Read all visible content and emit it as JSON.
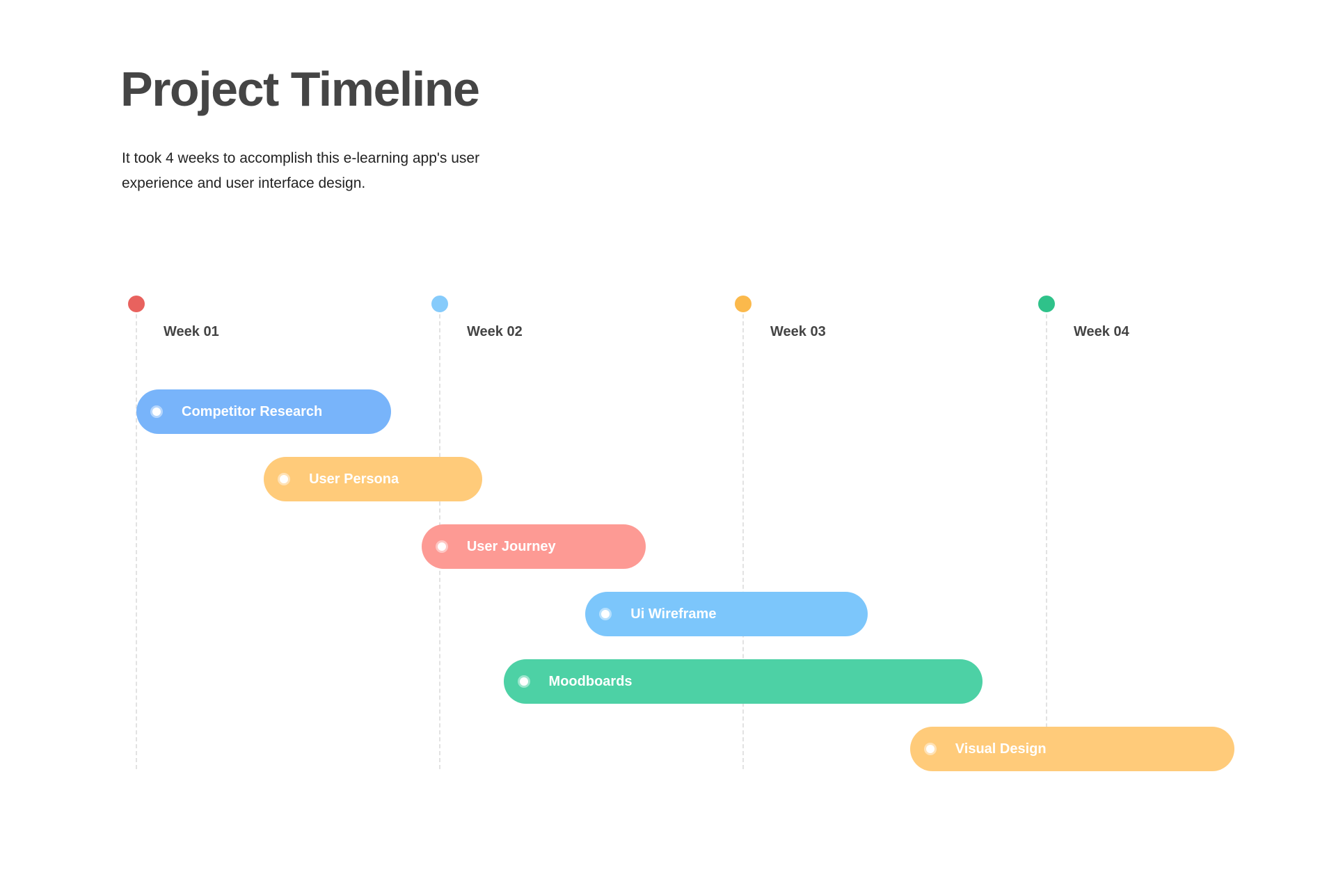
{
  "header": {
    "title": "Project Timeline",
    "subtitle": "It took 4 weeks to accomplish this e-learning app's user experience and user interface design."
  },
  "weeks": [
    {
      "label": "Week 01",
      "color": "#e8625e"
    },
    {
      "label": "Week 02",
      "color": "#86cbfb"
    },
    {
      "label": "Week 03",
      "color": "#fbb94c"
    },
    {
      "label": "Week 04",
      "color": "#2fc28a"
    }
  ],
  "tasks": [
    {
      "label": "Competitor Research",
      "color": "#78b4fa",
      "start_week": 1.0,
      "end_week": 1.84
    },
    {
      "label": "User Persona",
      "color": "#ffcb7a",
      "start_week": 1.42,
      "end_week": 2.14
    },
    {
      "label": "User Journey",
      "color": "#fd9a94",
      "start_week": 1.94,
      "end_week": 2.68
    },
    {
      "label": "Ui Wireframe",
      "color": "#7cc6fb",
      "start_week": 2.48,
      "end_week": 3.41
    },
    {
      "label": "Moodboards",
      "color": "#4dd1a5",
      "start_week": 2.21,
      "end_week": 3.79
    },
    {
      "label": "Visual Design",
      "color": "#ffcb7a",
      "start_week": 3.55,
      "end_week": 4.62
    }
  ]
}
